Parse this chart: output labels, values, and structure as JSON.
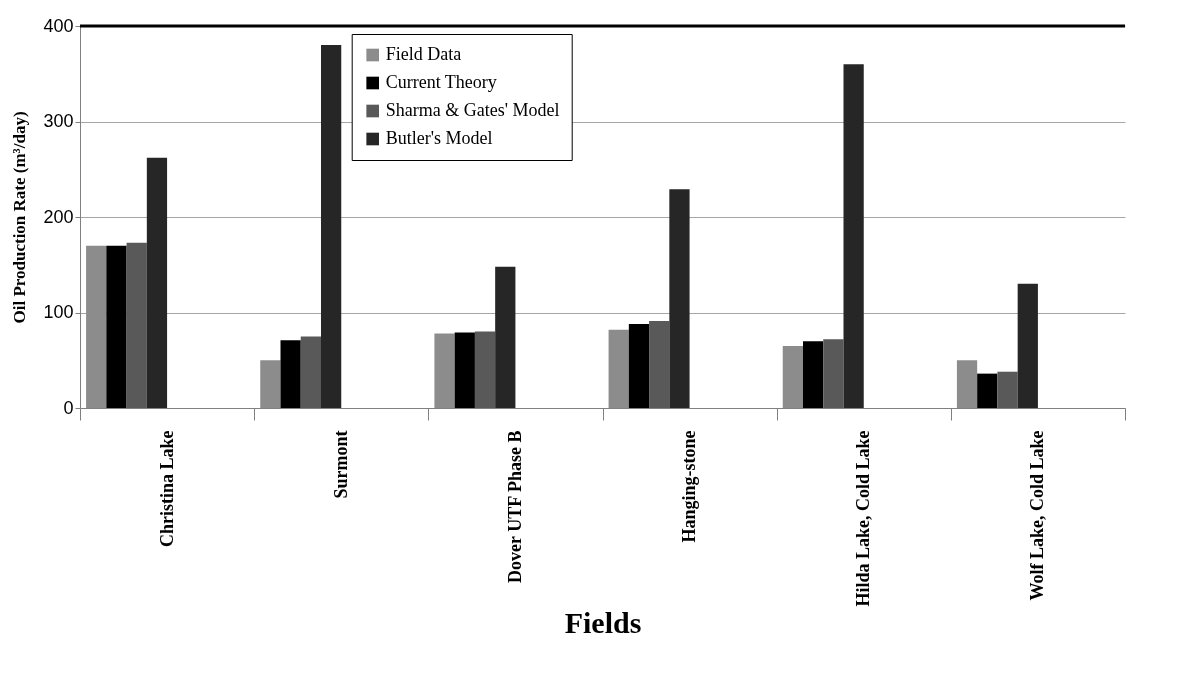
{
  "chart_data": {
    "type": "bar",
    "xlabel": "Fields",
    "ylabel": "Oil Production Rate (m³/day)",
    "categories": [
      "Christina Lake",
      "Surmont",
      "Dover UTF Phase B",
      "Hanging-stone",
      "Hilda Lake, Cold Lake",
      "Wolf Lake, Cold Lake"
    ],
    "series": [
      {
        "name": "Field Data",
        "color": "#8c8c8c",
        "values": [
          170,
          50,
          78,
          82,
          65,
          50
        ]
      },
      {
        "name": "Current Theory",
        "color": "#000000",
        "values": [
          170,
          71,
          79,
          88,
          70,
          36
        ]
      },
      {
        "name": "Sharma & Gates' Model",
        "color": "#595959",
        "values": [
          173,
          75,
          80,
          91,
          72,
          38
        ]
      },
      {
        "name": "Butler's Model",
        "color": "#262626",
        "values": [
          262,
          380,
          148,
          229,
          360,
          130
        ]
      }
    ],
    "ylim": [
      0,
      400
    ],
    "yticks": [
      0,
      100,
      200,
      300,
      400
    ],
    "grid": "y",
    "legend": "top"
  }
}
